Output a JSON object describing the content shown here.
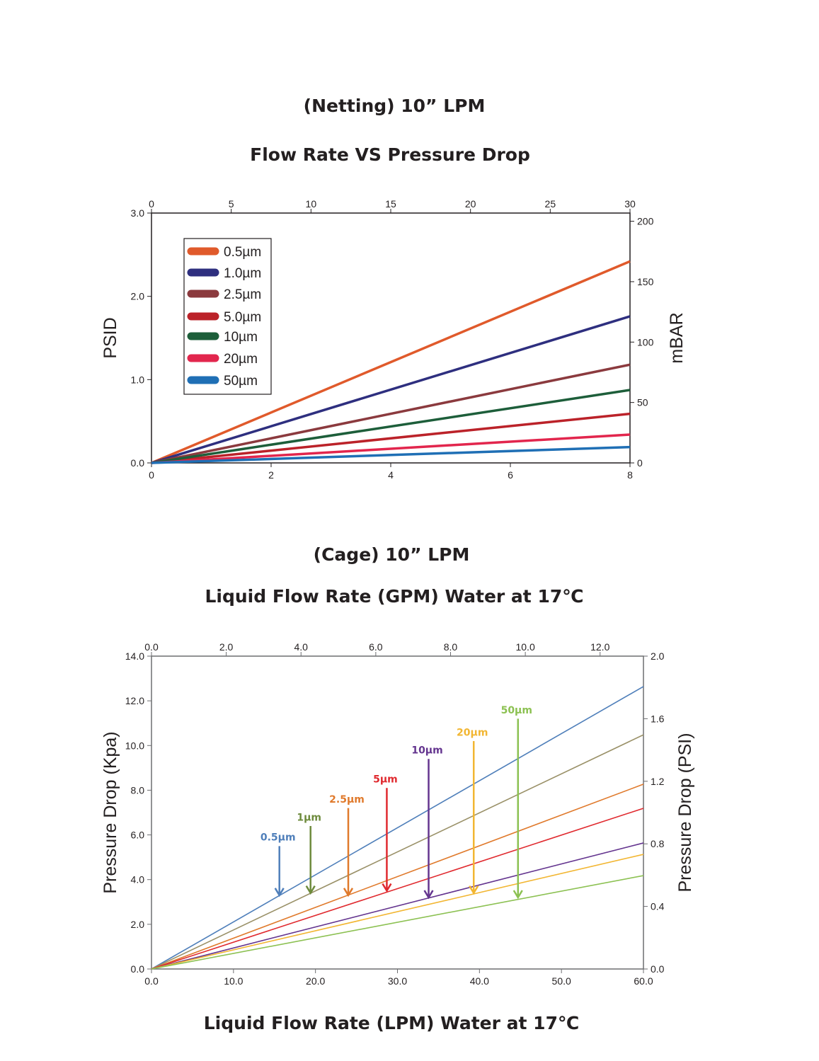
{
  "titles": {
    "chart1_title": "(Netting) 10” LPM",
    "chart1_subtitle": "Flow Rate VS Pressure Drop",
    "chart2_title": "(Cage) 10” LPM",
    "chart2_subtitle": "Liquid Flow Rate (GPM) Water at 17℃",
    "chart2_xlabel": "Liquid Flow Rate (LPM) Water at 17℃"
  },
  "chart_data": [
    {
      "type": "line",
      "title": "(Netting) 10” LPM",
      "subtitle": "Flow Rate VS Pressure Drop",
      "xlabel": "",
      "ylabel": "PSID",
      "y2label": "mBAR",
      "xlim": [
        0,
        8
      ],
      "xticks": [
        0,
        2,
        4,
        6,
        8
      ],
      "x2lim": [
        0,
        30
      ],
      "x2ticks": [
        0,
        5,
        10,
        15,
        20,
        25,
        30
      ],
      "ylim": [
        0,
        3.0
      ],
      "yticks": [
        "0.0",
        "1.0",
        "2.0",
        "3.0"
      ],
      "y2lim": [
        0,
        206.8
      ],
      "y2ticks": [
        0,
        50,
        100,
        150,
        200
      ],
      "grid": false,
      "legend": "top-left",
      "x": [
        0,
        8
      ],
      "series": [
        {
          "name": "0.5µm",
          "color": "#e05a2b",
          "values": [
            0,
            2.42
          ]
        },
        {
          "name": "1.0µm",
          "color": "#2e2f7f",
          "values": [
            0,
            1.76
          ]
        },
        {
          "name": "2.5µm",
          "color": "#8b3a3e",
          "values": [
            0,
            1.18
          ]
        },
        {
          "name": "5.0µm",
          "color": "#bb2229",
          "values": [
            0,
            0.59
          ]
        },
        {
          "name": "10µm",
          "color": "#1d5e3a",
          "values": [
            0,
            0.875
          ]
        },
        {
          "name": "20µm",
          "color": "#e2264d",
          "values": [
            0,
            0.34
          ]
        },
        {
          "name": "50µm",
          "color": "#1f6fb5",
          "values": [
            0,
            0.19
          ]
        }
      ]
    },
    {
      "type": "line",
      "title": "(Cage) 10” LPM",
      "xlabel": "Liquid Flow Rate (LPM) Water at 17℃",
      "x2label": "Liquid Flow Rate (GPM) Water at 17℃",
      "ylabel": "Pressure Drop (Kpa)",
      "y2label": "Pressure Drop (PSI)",
      "xlim": [
        0,
        60
      ],
      "xticks": [
        "0.0",
        "10.0",
        "20.0",
        "30.0",
        "40.0",
        "50.0",
        "60.0"
      ],
      "x2lim": [
        0,
        13.16
      ],
      "x2ticks": [
        "0.0",
        "2.0",
        "4.0",
        "6.0",
        "8.0",
        "10.0",
        "12.0"
      ],
      "ylim": [
        0,
        14
      ],
      "yticks": [
        "0.0",
        "2.0",
        "4.0",
        "6.0",
        "8.0",
        "10.0",
        "12.0",
        "14.0"
      ],
      "y2lim": [
        0,
        2.0
      ],
      "y2ticks": [
        "0.0",
        "0.4",
        "0.8",
        "1.2",
        "1.6",
        "2.0"
      ],
      "grid": false,
      "x": [
        0,
        60
      ],
      "series": [
        {
          "name": "0.5µm",
          "color": "#4f7fba",
          "values": [
            0,
            12.64
          ],
          "arrow": {
            "x": 15.6,
            "top": 5.5,
            "tip": 3.3,
            "label_y": 5.9
          }
        },
        {
          "name": "1µm",
          "color": "#6e8b3d",
          "values": [
            0,
            10.48
          ],
          "line_color": "#9a9168",
          "arrow": {
            "x": 19.4,
            "top": 6.4,
            "tip": 3.4,
            "label_y": 6.8
          }
        },
        {
          "name": "2.5µm",
          "color": "#e07a2c",
          "values": [
            0,
            8.27
          ],
          "arrow": {
            "x": 24.0,
            "top": 7.2,
            "tip": 3.3,
            "label_y": 7.6
          }
        },
        {
          "name": "5µm",
          "color": "#e02a2f",
          "values": [
            0,
            7.19
          ],
          "arrow": {
            "x": 28.7,
            "top": 8.1,
            "tip": 3.5,
            "label_y": 8.5
          }
        },
        {
          "name": "10µm",
          "color": "#64358f",
          "values": [
            0,
            5.64
          ],
          "arrow": {
            "x": 33.8,
            "top": 9.4,
            "tip": 3.2,
            "label_y": 9.8
          }
        },
        {
          "name": "20µm",
          "color": "#f2b632",
          "values": [
            0,
            5.13
          ],
          "arrow": {
            "x": 39.3,
            "top": 10.2,
            "tip": 3.4,
            "label_y": 10.6
          }
        },
        {
          "name": "50µm",
          "color": "#8cc152",
          "values": [
            0,
            4.18
          ],
          "arrow": {
            "x": 44.7,
            "top": 11.2,
            "tip": 3.2,
            "label_y": 11.6
          }
        }
      ]
    }
  ]
}
